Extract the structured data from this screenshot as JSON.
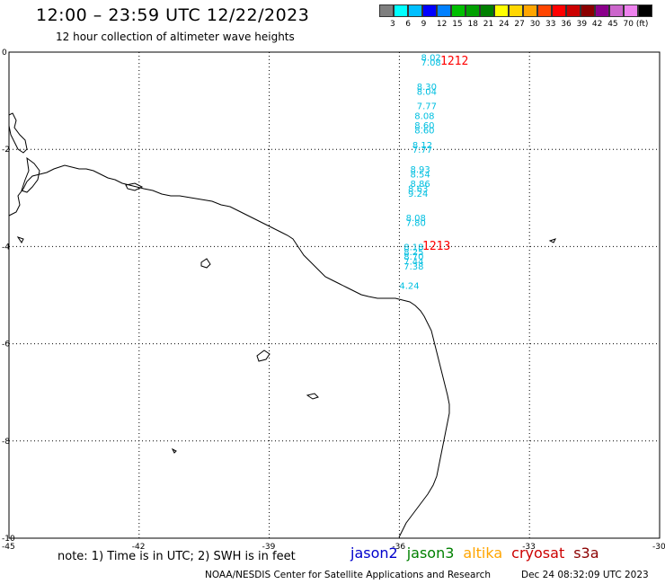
{
  "header": {
    "title": "12:00 – 23:59 UTC 12/22/2023",
    "subtitle": "12 hour collection of altimeter wave heights"
  },
  "color_scale": {
    "swatches": [
      "#7f7f7f",
      "#00ffff",
      "#00bfff",
      "#0000ff",
      "#0080ff",
      "#00bf00",
      "#00a000",
      "#008000",
      "#ffff00",
      "#ffd700",
      "#ffa500",
      "#ff4500",
      "#ff0000",
      "#cc0000",
      "#8b0000",
      "#8b008b",
      "#cc66cc",
      "#ee82ee",
      "#000000"
    ],
    "labels": [
      "3",
      "6",
      "9",
      "12",
      "15",
      "18",
      "21",
      "24",
      "27",
      "30",
      "33",
      "36",
      "39",
      "42",
      "45",
      "70 (ft)"
    ]
  },
  "map": {
    "lat_range": [
      -10,
      0
    ],
    "lon_range": [
      -45,
      -30
    ],
    "y_ticks": [
      "0",
      "-2",
      "-4",
      "-6",
      "-8",
      "-10"
    ],
    "x_ticks": [
      "-45",
      "-42",
      "-39",
      "-36",
      "-33",
      "-30"
    ],
    "track_times": [
      "1212",
      "1213"
    ],
    "wave_heights": [
      {
        "label": "8.02",
        "lat": -0.1,
        "lon": -35.5
      },
      {
        "label": "7.08",
        "lat": -0.2,
        "lon": -35.5
      },
      {
        "label": "8.30",
        "lat": -0.7,
        "lon": -35.6
      },
      {
        "label": "8.04",
        "lat": -0.8,
        "lon": -35.6
      },
      {
        "label": "7.77",
        "lat": -1.1,
        "lon": -35.6
      },
      {
        "label": "8.08",
        "lat": -1.3,
        "lon": -35.65
      },
      {
        "label": "8.60",
        "lat": -1.5,
        "lon": -35.65
      },
      {
        "label": "8.60",
        "lat": -1.6,
        "lon": -35.65
      },
      {
        "label": "8.12",
        "lat": -1.9,
        "lon": -35.7
      },
      {
        "label": "7.77",
        "lat": -2.0,
        "lon": -35.7
      },
      {
        "label": "8.93",
        "lat": -2.4,
        "lon": -35.75
      },
      {
        "label": "8.54",
        "lat": -2.5,
        "lon": -35.75
      },
      {
        "label": "8.86",
        "lat": -2.7,
        "lon": -35.75
      },
      {
        "label": "8.63",
        "lat": -2.8,
        "lon": -35.8
      },
      {
        "label": "9.24",
        "lat": -2.9,
        "lon": -35.8
      },
      {
        "label": "8.08",
        "lat": -3.4,
        "lon": -35.85
      },
      {
        "label": "7.80",
        "lat": -3.5,
        "lon": -35.85
      },
      {
        "label": "8.18",
        "lat": -4.0,
        "lon": -35.9
      },
      {
        "label": "8.25",
        "lat": -4.1,
        "lon": -35.9
      },
      {
        "label": "8.70",
        "lat": -4.2,
        "lon": -35.9
      },
      {
        "label": "7.44",
        "lat": -4.3,
        "lon": -35.9
      },
      {
        "label": "7.38",
        "lat": -4.4,
        "lon": -35.9
      },
      {
        "label": "4.24",
        "lat": -4.8,
        "lon": -36.0
      }
    ]
  },
  "footer": {
    "note": "note: 1) Time is in UTC; 2) SWH is in feet",
    "legend": [
      {
        "name": "jason2",
        "color": "#0000cc"
      },
      {
        "name": "jason3",
        "color": "#008000"
      },
      {
        "name": "altika",
        "color": "#ffa500"
      },
      {
        "name": "cryosat",
        "color": "#cc0000"
      },
      {
        "name": "s3a",
        "color": "#8b0000"
      }
    ],
    "credit": "NOAA/NESDIS Center for Satellite Applications and Research",
    "timestamp": "Dec 24 08:32:09 UTC 2023"
  }
}
